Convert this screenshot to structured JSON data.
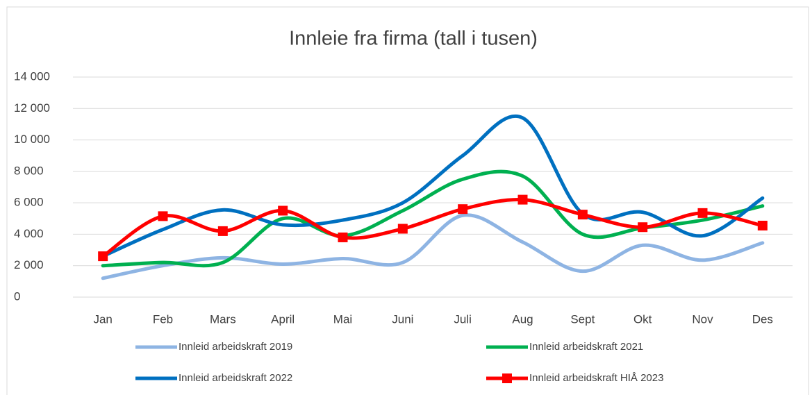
{
  "chart_data": {
    "type": "line",
    "title": "Innleie fra firma  (tall i tusen)",
    "categories": [
      "Jan",
      "Feb",
      "Mars",
      "April",
      "Mai",
      "Juni",
      "Juli",
      "Aug",
      "Sept",
      "Okt",
      "Nov",
      "Des"
    ],
    "series": [
      {
        "name": "Innleid arbeidskraft  2019",
        "color": "#8eb4e3",
        "values": [
          1200,
          2000,
          2500,
          2100,
          2450,
          2200,
          5200,
          3500,
          1650,
          3300,
          2350,
          3450
        ]
      },
      {
        "name": "Innleid arbeidskraft  2021",
        "color": "#00b050",
        "values": [
          2000,
          2200,
          2200,
          5000,
          3900,
          5500,
          7500,
          7700,
          4000,
          4400,
          4900,
          5800
        ]
      },
      {
        "name": "Innleid arbeidskraft  2022",
        "color": "#0070c0",
        "values": [
          2600,
          4300,
          5550,
          4600,
          4900,
          6000,
          9000,
          11400,
          5300,
          5400,
          3900,
          6300
        ]
      },
      {
        "name": "Innleid arbeidskraft HIÅ 2023",
        "color": "#ff0000",
        "marker": "square",
        "values": [
          2600,
          5150,
          4200,
          5500,
          3800,
          4350,
          5600,
          6200,
          5250,
          4450,
          5350,
          4550
        ]
      }
    ],
    "ylim": [
      0,
      14000
    ],
    "yticks": [
      0,
      {
        "value": 2000,
        "label": "2 000"
      },
      {
        "value": 4000,
        "label": "4 000"
      },
      {
        "value": 6000,
        "label": "6 000"
      },
      {
        "value": 8000,
        "label": "8 000"
      },
      {
        "value": 10000,
        "label": "10 000"
      },
      {
        "value": 12000,
        "label": "12 000"
      },
      {
        "value": 14000,
        "label": "14 000"
      }
    ],
    "grid": true,
    "legend": "bottom",
    "smooth": true
  }
}
